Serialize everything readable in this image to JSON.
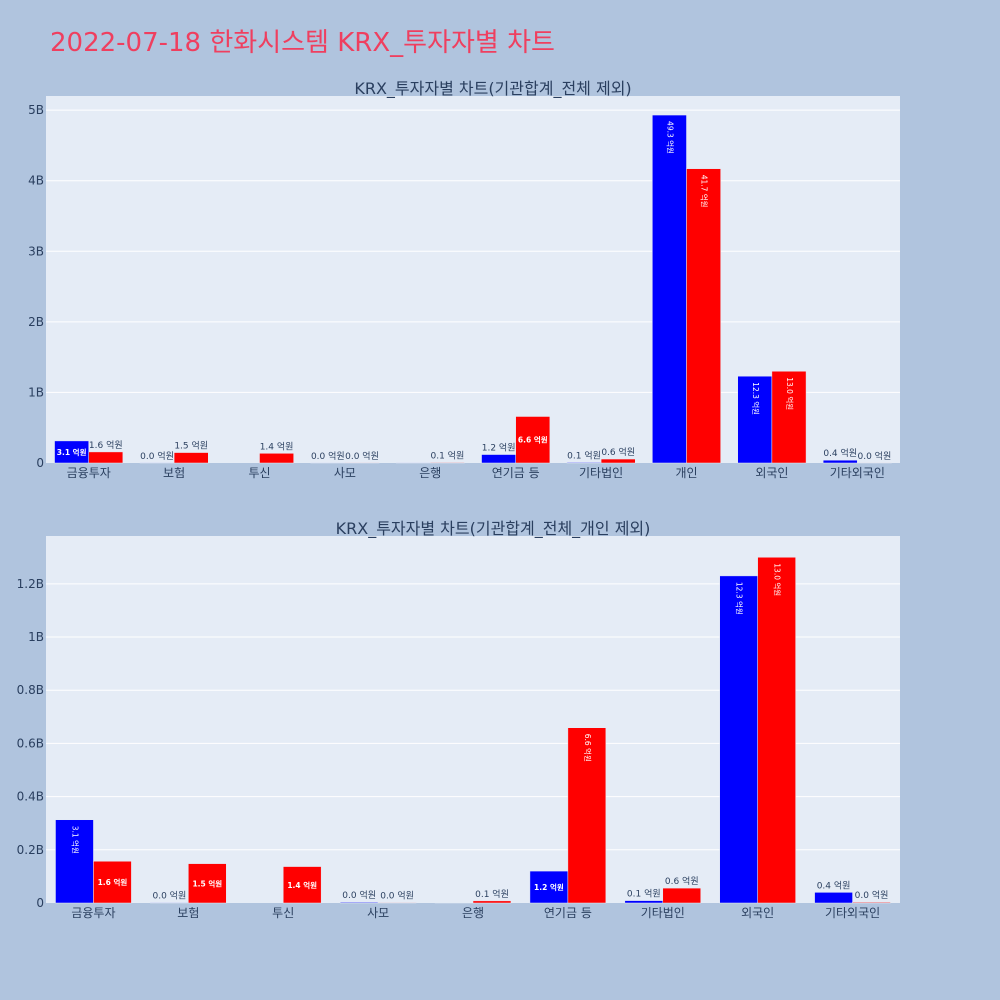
{
  "page": {
    "title": "2022-07-18 한화시스템 KRX_투자자별 차트"
  },
  "colors": {
    "background": "#b0c4de",
    "plot_bg": "#e5ecf6",
    "title": "#ef3f5f",
    "series_a": "#0000ff",
    "series_b": "#ff0000"
  },
  "chart_data": [
    {
      "type": "bar",
      "title": "KRX_투자자별 차트(기관합계_전체 제외)",
      "categories": [
        "금융투자",
        "보험",
        "투신",
        "사모",
        "은행",
        "연기금 등",
        "기타법인",
        "개인",
        "외국인",
        "기타외국인"
      ],
      "series": [
        {
          "values": [
            313000000,
            2000000,
            0,
            3000000,
            1000000,
            120000000,
            9000000,
            4930000000,
            1230000000,
            40000000
          ],
          "labels": [
            "3.1 억원",
            "0.0 억원",
            "",
            "0.0 억원",
            "",
            "1.2 억원",
            "0.1 억원",
            "49.3 억원",
            "12.3 억원",
            "0.4 억원"
          ]
        },
        {
          "values": [
            157000000,
            148000000,
            137000000,
            2000000,
            8000000,
            659000000,
            56000000,
            4170000000,
            1300000000,
            3000000
          ],
          "labels": [
            "1.6 억원",
            "1.5 억원",
            "1.4 억원",
            "0.0 억원",
            "0.1 억원",
            "6.6 억원",
            "0.6 억원",
            "41.7 억원",
            "13.0 억원",
            "0.0 억원"
          ]
        }
      ],
      "ylim": [
        0,
        5200000000
      ],
      "yticks": [
        0,
        1000000000,
        2000000000,
        3000000000,
        4000000000,
        5000000000
      ],
      "ytick_labels": [
        "0",
        "1B",
        "2B",
        "3B",
        "4B",
        "5B"
      ],
      "grid": true,
      "legend": false
    },
    {
      "type": "bar",
      "title": "KRX_투자자별 차트(기관합계_전체_개인 제외)",
      "categories": [
        "금융투자",
        "보험",
        "투신",
        "사모",
        "은행",
        "연기금 등",
        "기타법인",
        "외국인",
        "기타외국인"
      ],
      "series": [
        {
          "values": [
            313000000,
            2000000,
            0,
            3000000,
            1000000,
            120000000,
            9000000,
            1230000000,
            40000000
          ],
          "labels": [
            "3.1 억원",
            "0.0 억원",
            "",
            "0.0 억원",
            "",
            "1.2 억원",
            "0.1 억원",
            "12.3 억원",
            "0.4 억원"
          ]
        },
        {
          "values": [
            157000000,
            148000000,
            137000000,
            2000000,
            8000000,
            659000000,
            56000000,
            1300000000,
            3000000
          ],
          "labels": [
            "1.6 억원",
            "1.5 억원",
            "1.4 억원",
            "0.0 억원",
            "0.1 억원",
            "6.6 억원",
            "0.6 억원",
            "13.0 억원",
            "0.0 억원"
          ]
        }
      ],
      "ylim": [
        0,
        1380000000
      ],
      "yticks": [
        0,
        200000000,
        400000000,
        600000000,
        800000000,
        1000000000,
        1200000000
      ],
      "ytick_labels": [
        "0",
        "0.2B",
        "0.4B",
        "0.6B",
        "0.8B",
        "1B",
        "1.2B"
      ],
      "grid": true,
      "legend": false
    }
  ]
}
